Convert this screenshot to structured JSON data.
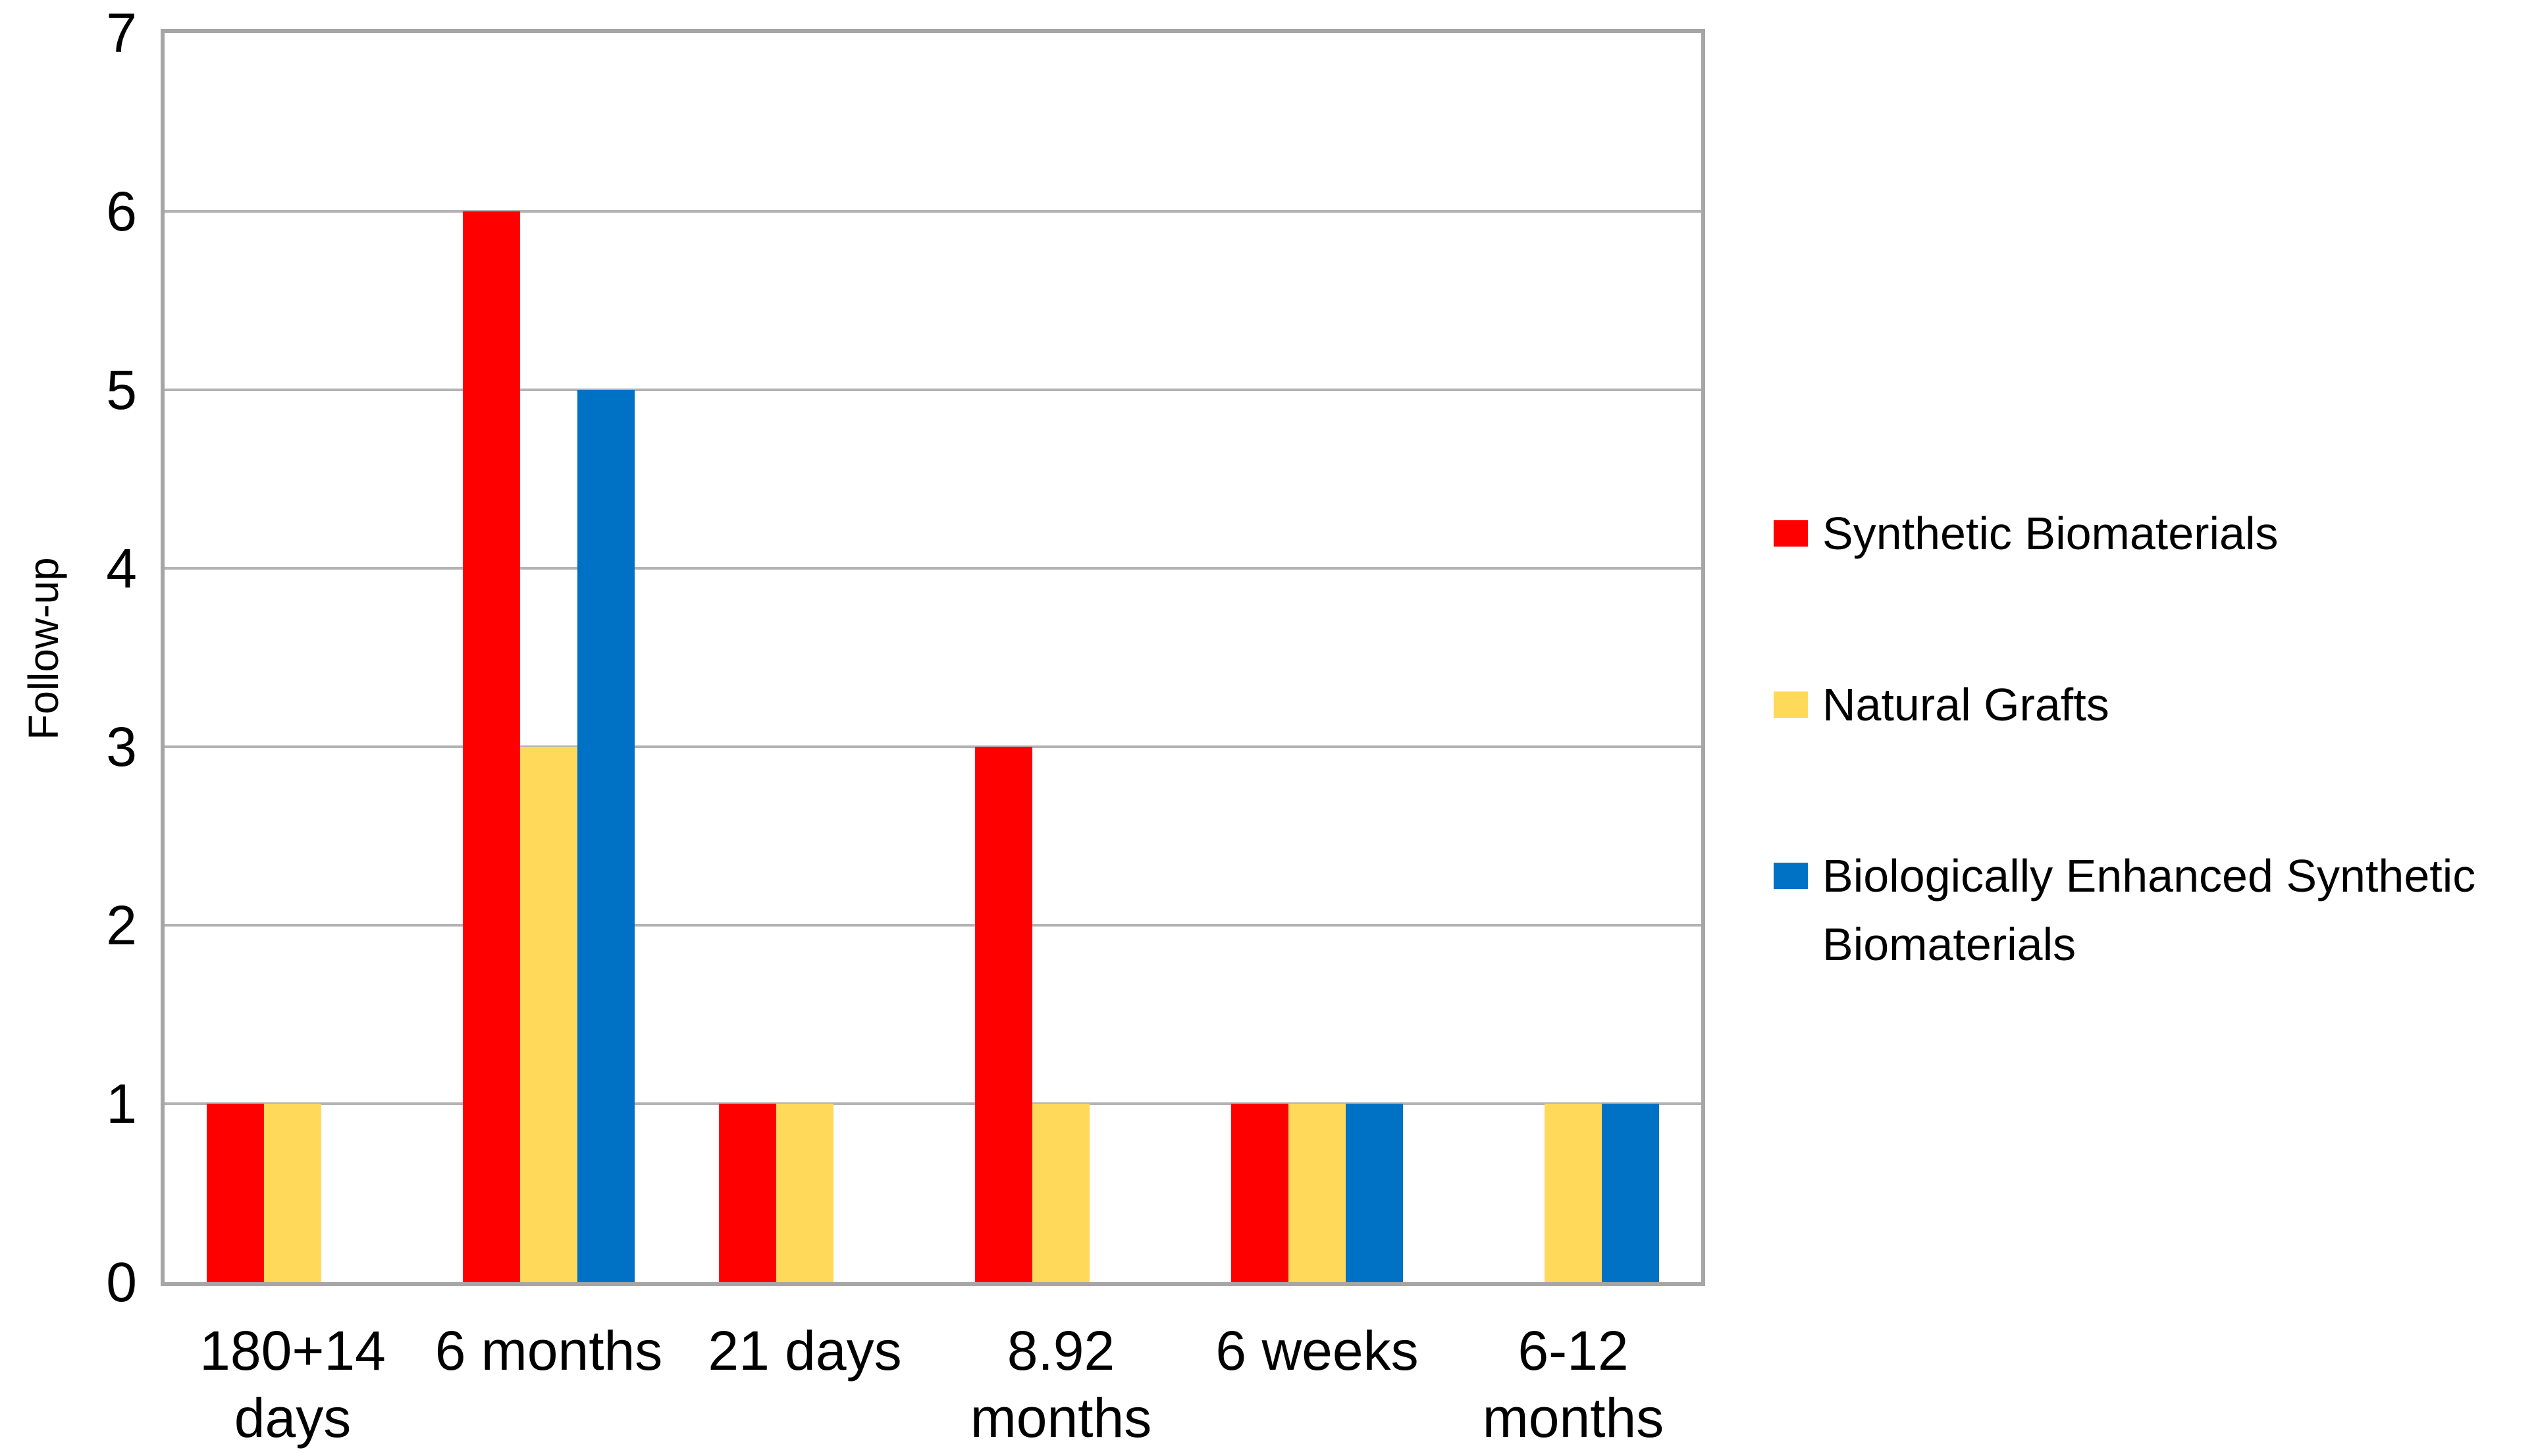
{
  "chart_data": {
    "type": "bar",
    "title": "",
    "xlabel": "",
    "ylabel": "Follow-up",
    "categories": [
      "180+14 days",
      "6 months",
      "21 days",
      "8.92 months",
      "6 weeks",
      "6-12 months"
    ],
    "category_labels": [
      "180+14\ndays",
      "6 months",
      "21 days",
      "8.92\nmonths",
      "6 weeks",
      "6-12\nmonths"
    ],
    "series": [
      {
        "name": "Synthetic Biomaterials",
        "color": "#FF0000",
        "values": [
          1,
          6,
          1,
          3,
          1,
          0
        ]
      },
      {
        "name": "Natural Grafts",
        "color": "#FFD95A",
        "values": [
          1,
          3,
          1,
          1,
          1,
          1
        ]
      },
      {
        "name": "Biologically Enhanced Synthetic Biomaterials",
        "color": "#0072C6",
        "values": [
          0,
          5,
          0,
          0,
          1,
          1
        ]
      }
    ],
    "y_ticks": [
      "0",
      "1",
      "2",
      "3",
      "4",
      "5",
      "6",
      "7"
    ],
    "ylim": [
      0,
      7
    ],
    "grid": true,
    "legend_position": "right",
    "colors": {
      "grid": "#B3B3B3",
      "axis": "#A6A6A6",
      "text": "#000000",
      "background": "#FFFFFF"
    }
  }
}
